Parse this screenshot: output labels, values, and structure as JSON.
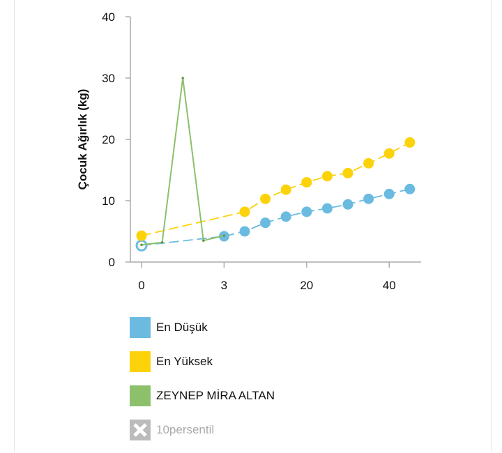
{
  "chart_data": {
    "type": "line",
    "ylabel": "Çocuk Ağırlık (kg)",
    "xlabel": "",
    "ylim": [
      0,
      40
    ],
    "yticks": [
      "0",
      "10",
      "20",
      "30",
      "40"
    ],
    "xticks": [
      {
        "slot": 0,
        "label": "0"
      },
      {
        "slot": 4,
        "label": "3"
      },
      {
        "slot": 8,
        "label": "20"
      },
      {
        "slot": 12,
        "label": "40"
      }
    ],
    "series": [
      {
        "name": "En Düşük",
        "color": "#6bbbe0",
        "marker": true,
        "dashed": true,
        "points": [
          [
            0,
            2.7
          ],
          [
            4,
            4.2
          ],
          [
            5,
            5.0
          ],
          [
            6,
            6.4
          ],
          [
            7,
            7.4
          ],
          [
            8,
            8.2
          ],
          [
            9,
            8.75
          ],
          [
            10,
            9.4
          ],
          [
            11,
            10.3
          ],
          [
            12,
            11.1
          ],
          [
            13,
            11.9
          ]
        ]
      },
      {
        "name": "En Yüksek",
        "color": "#fcd20a",
        "marker": true,
        "dashed": true,
        "points": [
          [
            0,
            4.3
          ],
          [
            5,
            8.2
          ],
          [
            6,
            10.3
          ],
          [
            7,
            11.8
          ],
          [
            8,
            13.0
          ],
          [
            9,
            14.0
          ],
          [
            10,
            14.5
          ],
          [
            11,
            16.1
          ],
          [
            12,
            17.7
          ],
          [
            13,
            19.5
          ]
        ]
      },
      {
        "name": "ZEYNEP MİRA ALTAN",
        "color": "#8cc06b",
        "marker": false,
        "dashed": false,
        "points": [
          [
            0,
            2.8
          ],
          [
            1,
            3.2
          ],
          [
            2,
            30.0
          ],
          [
            3,
            3.5
          ],
          [
            4,
            4.3
          ]
        ]
      }
    ],
    "legend": [
      {
        "label": "En Düşük",
        "color": "#6bbbe0",
        "hidden": false
      },
      {
        "label": "En Yüksek",
        "color": "#fcd20a",
        "hidden": false
      },
      {
        "label": "ZEYNEP MİRA ALTAN",
        "color": "#8cc06b",
        "hidden": false
      },
      {
        "label": "10persentil",
        "color": "#bbbbbb",
        "hidden": true
      }
    ],
    "legend_position": "bottom-left"
  }
}
